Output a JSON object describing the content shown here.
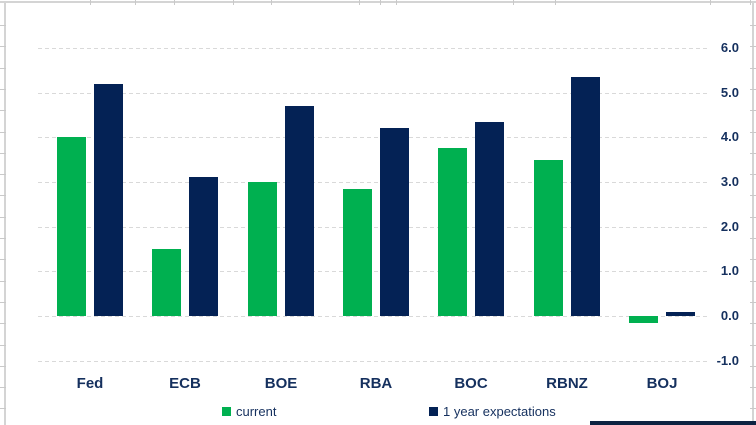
{
  "chart_data": {
    "type": "bar",
    "title": "",
    "xlabel": "",
    "ylabel": "",
    "categories": [
      "Fed",
      "ECB",
      "BOE",
      "RBA",
      "BOC",
      "RBNZ",
      "BOJ"
    ],
    "series": [
      {
        "name": "current",
        "color": "#00b050",
        "values": [
          4.0,
          1.5,
          3.0,
          2.85,
          3.75,
          3.5,
          -0.15
        ]
      },
      {
        "name": "1 year expectations",
        "color": "#042255",
        "values": [
          5.2,
          3.1,
          4.7,
          4.2,
          4.35,
          5.35,
          0.1
        ]
      }
    ],
    "ylim": [
      -1.0,
      6.0
    ],
    "y_axis_side": "right",
    "yticks": [
      {
        "v": 6.0,
        "label": "6.0"
      },
      {
        "v": 5.0,
        "label": "5.0"
      },
      {
        "v": 4.0,
        "label": "4.0"
      },
      {
        "v": 3.0,
        "label": "3.0"
      },
      {
        "v": 2.0,
        "label": "2.0"
      },
      {
        "v": 1.0,
        "label": "1.0"
      },
      {
        "v": 0.0,
        "label": "0.0"
      },
      {
        "v": -1.0,
        "label": "-1.0"
      }
    ],
    "grid": "horizontal-dashed",
    "legend_position": "bottom"
  },
  "colors": {
    "text_navy": "#15305e",
    "gridline": "#d9d9d9",
    "sheet_line": "#d4d4d4",
    "bottom_strip": "#0d2342"
  },
  "layout_ticks": {
    "top_tick_x": [
      90,
      135,
      174,
      233,
      271,
      359,
      380,
      396,
      513,
      555,
      710,
      750
    ]
  }
}
